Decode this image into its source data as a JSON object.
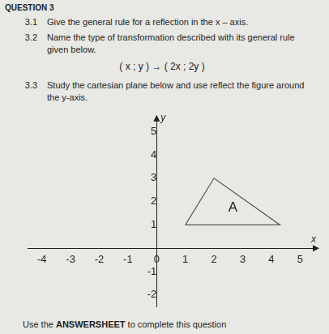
{
  "heading": "QUESTION 3",
  "questions": [
    {
      "number": "3.1",
      "text": "Give the general rule for a reflection in the x – axis."
    },
    {
      "number": "3.2",
      "text": "Name the type of transformation described with its general rule given below.",
      "rule": "( x ; y ) → ( 2x ; 2y )"
    },
    {
      "number": "3.3",
      "text": "Study the cartesian plane below and use reflect the figure around the y-axis."
    }
  ],
  "chart_data": {
    "type": "polygon",
    "label": "A",
    "xlabel": "x",
    "ylabel": "y",
    "x": [
      1,
      4.3,
      2
    ],
    "y": [
      1,
      1,
      3
    ],
    "color": "#555555",
    "xlim": [
      -4.5,
      5.5
    ],
    "ylim": [
      -2.5,
      5.5
    ],
    "xticks": [
      -4,
      -3,
      -2,
      -1,
      0,
      1,
      2,
      3,
      4,
      5
    ],
    "yticks": [
      -2,
      -1,
      1,
      2,
      3,
      4,
      5
    ],
    "grid": false
  },
  "footer": {
    "before": "Use the ",
    "bold": "ANSWERSHEET",
    "after": " to complete this question"
  }
}
